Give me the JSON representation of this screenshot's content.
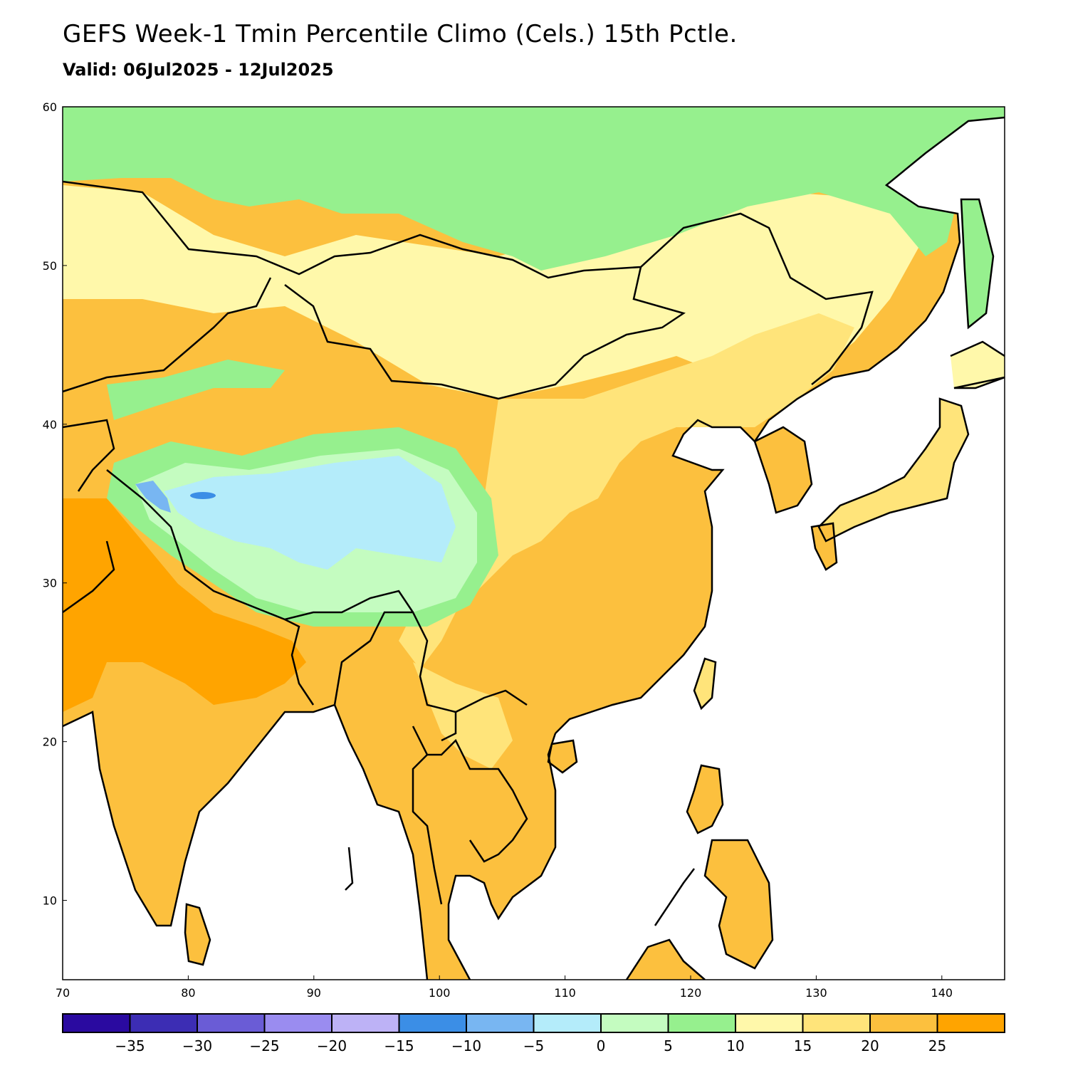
{
  "header": {
    "title": "GEFS Week-1 Tmin Percentile Climo (Cels.) 15th Pctle.",
    "valid": "Valid: 06Jul2025 - 12Jul2025"
  },
  "map": {
    "lon_range": [
      70,
      145
    ],
    "lat_range": [
      5,
      60
    ],
    "lon_ticks": [
      "70",
      "80",
      "90",
      "100",
      "110",
      "120",
      "130",
      "140"
    ],
    "lat_ticks": [
      "10",
      "20",
      "30",
      "40",
      "50",
      "60"
    ]
  },
  "colorbar": {
    "colors": [
      "#2a0aa0",
      "#3c2db4",
      "#6a5cd6",
      "#9a8cf0",
      "#bdb2f6",
      "#3b8ee6",
      "#78b6f2",
      "#b4ecfa",
      "#c4fcc0",
      "#96f08e",
      "#fff8aa",
      "#ffe47a",
      "#fcc03e",
      "#ffa400"
    ],
    "labels": [
      "-35",
      "-30",
      "-25",
      "-20",
      "-15",
      "-10",
      "-5",
      "0",
      "5",
      "10",
      "15",
      "20",
      "25"
    ]
  }
}
